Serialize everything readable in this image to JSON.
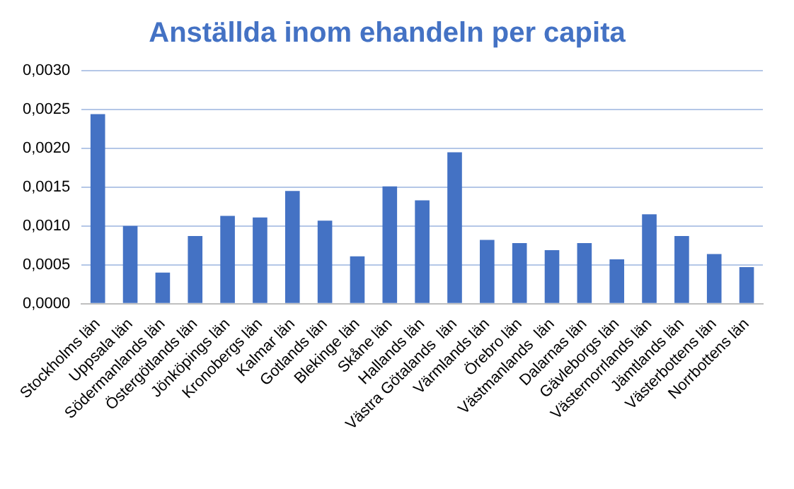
{
  "chart_data": {
    "type": "bar",
    "title": "Anställda inom ehandeln per capita",
    "categories": [
      "Stockholms län",
      "Uppsala län",
      "Södermanlands län",
      "Östergötlands län",
      "Jönköpings län",
      "Kronobergs län",
      "Kalmar län",
      "Gotlands län",
      "Blekinge län",
      "Skåne län",
      "Hallands län",
      "Västra Götalands  län",
      "Värmlands län",
      "Örebro län",
      "Västmanlands  län",
      "Dalarnas län",
      "Gävleborgs län",
      "Västernorrlands län",
      "Jämtlands län",
      "Västerbottens län",
      "Norrbottens län"
    ],
    "values": [
      0.00244,
      0.001,
      0.0004,
      0.00087,
      0.00113,
      0.00111,
      0.00145,
      0.00107,
      0.00061,
      0.00151,
      0.00133,
      0.00195,
      0.00082,
      0.00078,
      0.00069,
      0.00078,
      0.00057,
      0.00115,
      0.00087,
      0.00064,
      0.00047
    ],
    "color": "#4472c4",
    "ylim": [
      0,
      0.003
    ],
    "yticks": [
      {
        "value": 0,
        "label": "0,0000"
      },
      {
        "value": 0.0005,
        "label": "0,0005"
      },
      {
        "value": 0.001,
        "label": "0,0010"
      },
      {
        "value": 0.0015,
        "label": "0,0015"
      },
      {
        "value": 0.002,
        "label": "0,0020"
      },
      {
        "value": 0.0025,
        "label": "0,0025"
      },
      {
        "value": 0.003,
        "label": "0,0030"
      }
    ],
    "grid": "y"
  }
}
